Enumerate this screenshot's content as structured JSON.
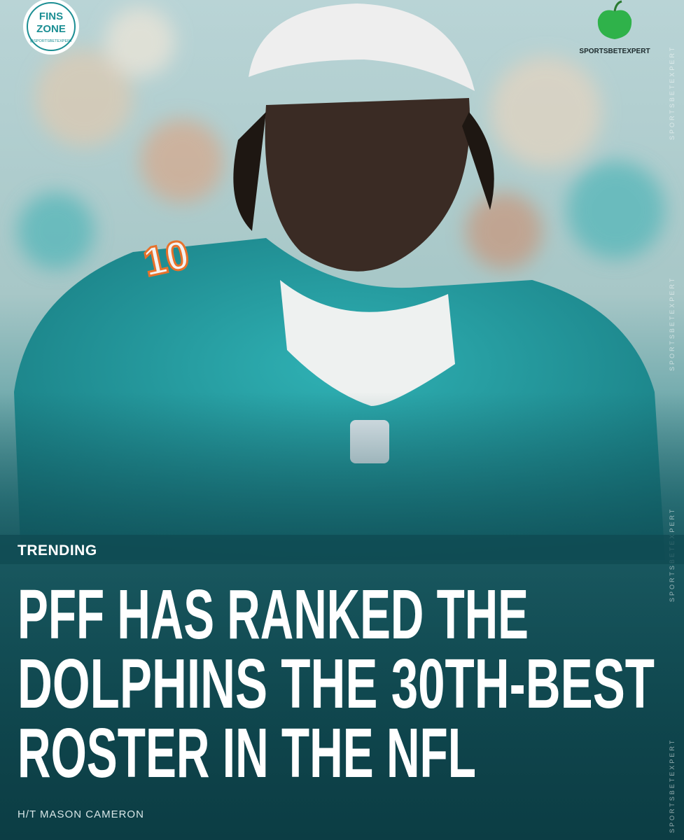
{
  "logo": {
    "line1": "FINS",
    "line2": "ZONE",
    "handle": "@SPORTSBETEXPERT"
  },
  "brand": "SPORTSBETEXPERT",
  "tag": "TRENDING",
  "headline": [
    "PFF HAS RANKED THE",
    "DOLPHINS THE 30TH-BEST",
    "ROSTER IN THE NFL"
  ],
  "credit": "H/T MASON CAMERON",
  "watermark": "SPORTSBETEXPERT"
}
